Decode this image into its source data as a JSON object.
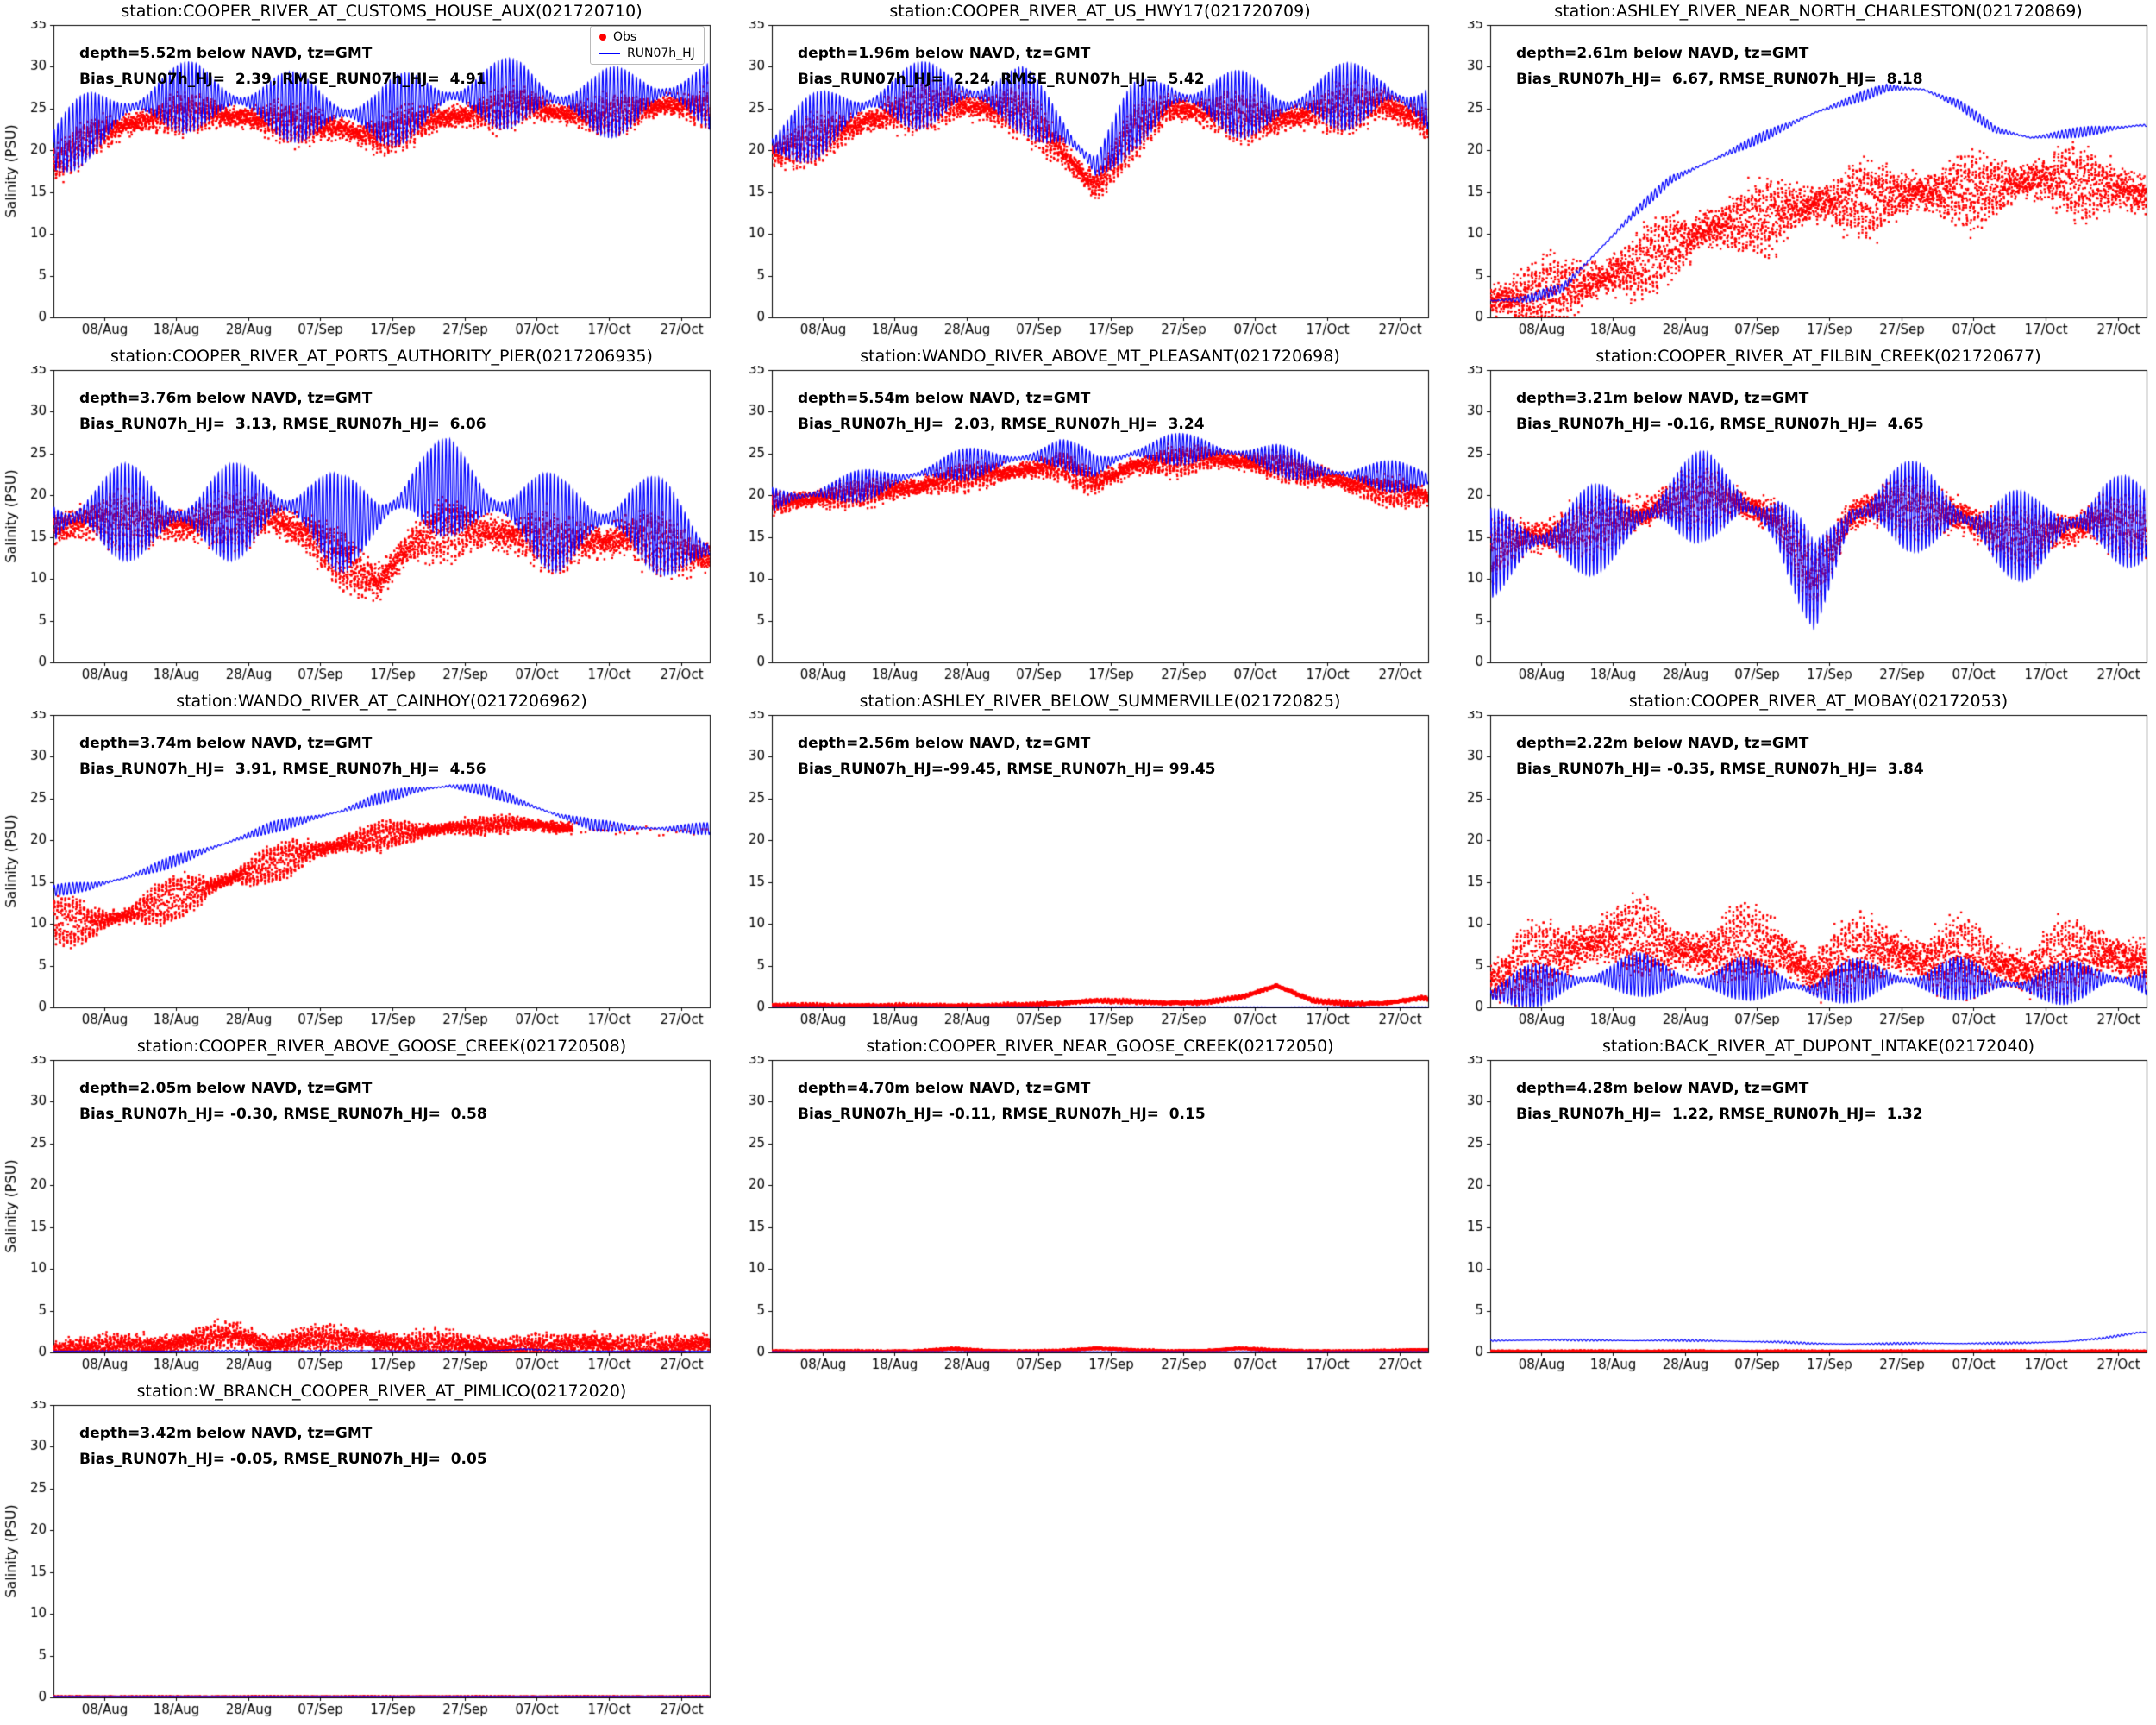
{
  "figure": {
    "background": "#ffffff",
    "obs_color": "#ff0000",
    "model_color": "#0000ff",
    "legend": {
      "obs_label": "Obs",
      "model_label": "RUN07h_HJ"
    },
    "ylabel": "Salinity (PSU)",
    "ylim": [
      0,
      35
    ],
    "xlim": [
      0,
      91
    ],
    "yticks": [
      0,
      5,
      10,
      15,
      20,
      25,
      30,
      35
    ],
    "xtick_days": [
      7,
      17,
      27,
      37,
      47,
      57,
      67,
      77,
      87
    ],
    "xtick_labels": [
      "08/Aug",
      "18/Aug",
      "28/Aug",
      "07/Sep",
      "17/Sep",
      "27/Sep",
      "07/Oct",
      "17/Oct",
      "27/Oct"
    ],
    "day_grid": [
      0,
      5,
      10,
      15,
      20,
      25,
      30,
      35,
      40,
      45,
      50,
      55,
      60,
      65,
      70,
      75,
      80,
      85,
      90
    ]
  },
  "chart_data": [
    {
      "type": "scatter+line",
      "title": "station:COOPER_RIVER_AT_CUSTOMS_HOUSE_AUX(021720710)",
      "annotation_depth": "depth=5.52m below NAVD, tz=GMT",
      "annotation_stats": "Bias_RUN07h_HJ=  2.39, RMSE_RUN07h_HJ=  4.91",
      "has_ylabel": true,
      "show_legend": true,
      "series": [
        {
          "name": "Obs",
          "style": "scatter",
          "color": "#ff0000",
          "trend": [
            18,
            21.5,
            23,
            24,
            24.5,
            24,
            23.5,
            23,
            22.5,
            21.5,
            23,
            24,
            24.5,
            25.5,
            24.5,
            24,
            24.5,
            25.5,
            25
          ],
          "amp": 1.8,
          "noise": 0.9
        },
        {
          "name": "RUN07h_HJ",
          "style": "line",
          "color": "#0000ff",
          "trend": [
            20,
            23,
            25,
            26,
            26.5,
            26,
            25.5,
            25,
            24.5,
            24,
            25.5,
            26.5,
            26.5,
            27,
            26,
            25.5,
            26,
            27,
            26.5
          ],
          "amp": 4.2
        }
      ]
    },
    {
      "type": "scatter+line",
      "title": "station:COOPER_RIVER_AT_US_HWY17(021720709)",
      "annotation_depth": "depth=1.96m below NAVD, tz=GMT",
      "annotation_stats": "Bias_RUN07h_HJ=  2.24, RMSE_RUN07h_HJ=  5.42",
      "has_ylabel": false,
      "show_legend": false,
      "series": [
        {
          "name": "Obs",
          "style": "scatter",
          "color": "#ff0000",
          "trend": [
            19.5,
            21,
            22.5,
            24,
            25,
            25.5,
            25,
            24.5,
            20,
            15.5,
            22,
            25,
            24.5,
            24,
            23.5,
            24.5,
            25,
            25.5,
            23.5
          ],
          "amp": 2.2,
          "noise": 1.0
        },
        {
          "name": "RUN07h_HJ",
          "style": "line",
          "color": "#0000ff",
          "trend": [
            20.5,
            22.5,
            24.5,
            26,
            26.5,
            27,
            26.5,
            26,
            22.5,
            18,
            24,
            26.5,
            26,
            25.5,
            25,
            26,
            26.5,
            27,
            25
          ],
          "amp": 4.0
        }
      ]
    },
    {
      "type": "scatter+line",
      "title": "station:ASHLEY_RIVER_NEAR_NORTH_CHARLESTON(021720869)",
      "annotation_depth": "depth=2.61m below NAVD, tz=GMT",
      "annotation_stats": "Bias_RUN07h_HJ=  6.67, RMSE_RUN07h_HJ=  8.18",
      "has_ylabel": false,
      "show_legend": false,
      "series": [
        {
          "name": "Obs",
          "style": "scatter",
          "color": "#ff0000",
          "trend": [
            2,
            2.3,
            3,
            4.5,
            6,
            8.5,
            10.5,
            11.5,
            12.5,
            13.5,
            14,
            14.5,
            15,
            15,
            15.5,
            16.5,
            16.5,
            15.5,
            15
          ],
          "amp": 3.2,
          "noise": 1.6
        },
        {
          "name": "RUN07h_HJ",
          "style": "line",
          "color": "#0000ff",
          "trend": [
            2,
            2.2,
            3.5,
            8,
            12.5,
            16.5,
            18.5,
            20.5,
            22.5,
            24.5,
            26,
            27.5,
            27.3,
            25.5,
            22.5,
            21.5,
            22,
            22.5,
            23
          ],
          "amp": 0.6
        }
      ]
    },
    {
      "type": "scatter+line",
      "title": "station:COOPER_RIVER_AT_PORTS_AUTHORITY_PIER(0217206935)",
      "annotation_depth": "depth=3.76m below NAVD, tz=GMT",
      "annotation_stats": "Bias_RUN07h_HJ=  3.13, RMSE_RUN07h_HJ=  6.06",
      "has_ylabel": true,
      "show_legend": false,
      "series": [
        {
          "name": "Obs",
          "style": "scatter",
          "color": "#ff0000",
          "trend": [
            16,
            17,
            17,
            16.5,
            16.5,
            17,
            17.5,
            15.5,
            12,
            9.5,
            14.5,
            16,
            15.5,
            15,
            14,
            14.5,
            15,
            14,
            12.5
          ],
          "amp": 2.6,
          "noise": 1.3
        },
        {
          "name": "RUN07h_HJ",
          "style": "line",
          "color": "#0000ff",
          "trend": [
            16.5,
            18,
            18,
            17.5,
            17.5,
            18,
            19,
            18.5,
            16.5,
            17.5,
            20.5,
            21,
            19,
            18,
            16.5,
            17,
            17.5,
            16,
            13.5
          ],
          "amp": 5.8
        }
      ]
    },
    {
      "type": "scatter+line",
      "title": "station:WANDO_RIVER_ABOVE_MT_PLEASANT(021720698)",
      "annotation_depth": "depth=5.54m below NAVD, tz=GMT",
      "annotation_stats": "Bias_RUN07h_HJ=  2.03, RMSE_RUN07h_HJ=  3.24",
      "has_ylabel": false,
      "show_legend": false,
      "series": [
        {
          "name": "Obs",
          "style": "scatter",
          "color": "#ff0000",
          "trend": [
            19,
            19.5,
            20,
            20.5,
            21,
            22,
            22.5,
            23,
            23.5,
            21.5,
            23.5,
            24,
            24.5,
            24,
            23.5,
            22.5,
            21.5,
            20.5,
            20
          ],
          "amp": 1.2,
          "noise": 0.7
        },
        {
          "name": "RUN07h_HJ",
          "style": "line",
          "color": "#0000ff",
          "trend": [
            19.5,
            20,
            20.8,
            21.5,
            22.5,
            23.5,
            24,
            24.5,
            25,
            23.5,
            25,
            25.5,
            25.5,
            25,
            24.3,
            23,
            22.5,
            22.3,
            22
          ],
          "amp": 1.9
        }
      ]
    },
    {
      "type": "scatter+line",
      "title": "station:COOPER_RIVER_AT_FILBIN_CREEK(021720677)",
      "annotation_depth": "depth=3.21m below NAVD, tz=GMT",
      "annotation_stats": "Bias_RUN07h_HJ= -0.16, RMSE_RUN07h_HJ=  4.65",
      "has_ylabel": false,
      "show_legend": false,
      "series": [
        {
          "name": "Obs",
          "style": "scatter",
          "color": "#ff0000",
          "trend": [
            13.5,
            15,
            15.5,
            16.5,
            17.5,
            19,
            20,
            19,
            17,
            10,
            17.5,
            19,
            18.5,
            17.5,
            15.5,
            15,
            16,
            17,
            16
          ],
          "amp": 2.6,
          "noise": 1.3
        },
        {
          "name": "RUN07h_HJ",
          "style": "line",
          "color": "#0000ff",
          "trend": [
            13,
            14.5,
            15,
            16,
            17,
            19,
            20,
            19,
            16.5,
            9,
            17.5,
            19,
            18.5,
            17.5,
            15.5,
            15,
            16.5,
            17.5,
            16.5
          ],
          "amp": 5.4
        }
      ]
    },
    {
      "type": "scatter+line",
      "title": "station:WANDO_RIVER_AT_CAINHOY(0217206962)",
      "annotation_depth": "depth=3.74m below NAVD, tz=GMT",
      "annotation_stats": "Bias_RUN07h_HJ=  3.91, RMSE_RUN07h_HJ=  4.56",
      "has_ylabel": true,
      "show_legend": false,
      "series": [
        {
          "name": "Obs",
          "style": "scatter",
          "color": "#ff0000",
          "trend": [
            10.5,
            10,
            11,
            12.5,
            14,
            15.5,
            17,
            18.5,
            19.5,
            20.5,
            21,
            21.5,
            21.8,
            22,
            21.5,
            21.3,
            21.2,
            21.1,
            21.2
          ],
          "amp": [
            2.5,
            2.5,
            2.5,
            2.4,
            2.3,
            2.2,
            2.0,
            1.8,
            1.6,
            1.4,
            1.2,
            1.0,
            0.8,
            0.5,
            0.3,
            0.25,
            0.25,
            0.25,
            0.25
          ],
          "noise": 0.5,
          "sparse_after": 72
        },
        {
          "name": "RUN07h_HJ",
          "style": "line",
          "color": "#0000ff",
          "trend": [
            14,
            14.5,
            15.5,
            17,
            18.5,
            20,
            21.5,
            22.5,
            23.5,
            25,
            26,
            26.5,
            26,
            24.5,
            23,
            21.8,
            21.5,
            21.4,
            21.4
          ],
          "amp": 0.7
        }
      ]
    },
    {
      "type": "scatter+line",
      "title": "station:ASHLEY_RIVER_BELOW_SUMMERVILLE(021720825)",
      "annotation_depth": "depth=2.56m below NAVD, tz=GMT",
      "annotation_stats": "Bias_RUN07h_HJ=-99.45, RMSE_RUN07h_HJ= 99.45",
      "has_ylabel": false,
      "show_legend": false,
      "series": [
        {
          "name": "Obs",
          "style": "scatter",
          "color": "#ff0000",
          "trend": [
            0.2,
            0.2,
            0.2,
            0.2,
            0.2,
            0.2,
            0.2,
            0.3,
            0.5,
            0.8,
            0.7,
            0.5,
            0.6,
            1.2,
            2.6,
            0.8,
            0.4,
            0.5,
            1.1
          ],
          "amp": 0.15,
          "noise": 0.15
        },
        {
          "name": "RUN07h_HJ",
          "style": "line",
          "color": "#0000ff",
          "trend": [
            0.05,
            0.05,
            0.05,
            0.05,
            0.05,
            0.05,
            0.05,
            0.05,
            0.05,
            0.05,
            0.05,
            0.05,
            0.05,
            0.05,
            0.05,
            0.05,
            0.05,
            0.05,
            0.05
          ],
          "amp": 0.02
        }
      ]
    },
    {
      "type": "scatter+line",
      "title": "station:COOPER_RIVER_AT_MOBAY(02172053)",
      "annotation_depth": "depth=2.22m below NAVD, tz=GMT",
      "annotation_stats": "Bias_RUN07h_HJ= -0.35, RMSE_RUN07h_HJ=  3.84",
      "has_ylabel": false,
      "show_legend": false,
      "series": [
        {
          "name": "Obs",
          "style": "scatter",
          "color": "#ff0000",
          "trend": [
            3,
            5,
            6.5,
            8,
            9,
            7,
            6.5,
            8,
            7,
            4,
            6.5,
            7,
            5.5,
            6.5,
            5,
            4.5,
            6,
            6.5,
            5.5
          ],
          "amp": 3.4,
          "noise": 1.6
        },
        {
          "name": "RUN07h_HJ",
          "style": "line",
          "color": "#0000ff",
          "trend": [
            1.5,
            2.5,
            3,
            3.5,
            4,
            3.5,
            3,
            3.5,
            3,
            2,
            3.2,
            3.5,
            3,
            3.5,
            3,
            2.5,
            3,
            3.5,
            3
          ],
          "amp": 2.6
        }
      ]
    },
    {
      "type": "scatter+line",
      "title": "station:COOPER_RIVER_ABOVE_GOOSE_CREEK(021720508)",
      "annotation_depth": "depth=2.05m below NAVD, tz=GMT",
      "annotation_stats": "Bias_RUN07h_HJ= -0.30, RMSE_RUN07h_HJ=  0.58",
      "has_ylabel": true,
      "show_legend": false,
      "series": [
        {
          "name": "Obs",
          "style": "scatter",
          "color": "#ff0000",
          "trend": [
            0.3,
            0.6,
            0.9,
            0.7,
            1.6,
            2.2,
            0.8,
            1.6,
            1.8,
            1.3,
            0.9,
            1.1,
            0.7,
            0.6,
            0.9,
            1.2,
            0.5,
            0.6,
            1.1
          ],
          "amp": 0.9,
          "noise": 0.8
        },
        {
          "name": "RUN07h_HJ",
          "style": "line",
          "color": "#0000ff",
          "trend": [
            0.15,
            0.15,
            0.15,
            0.15,
            0.15,
            0.2,
            0.15,
            0.15,
            0.2,
            0.2,
            0.15,
            0.15,
            0.15,
            0.4,
            0.2,
            0.15,
            0.15,
            0.15,
            0.15
          ],
          "amp": 0.08
        }
      ]
    },
    {
      "type": "scatter+line",
      "title": "station:COOPER_RIVER_NEAR_GOOSE_CREEK(02172050)",
      "annotation_depth": "depth=4.70m below NAVD, tz=GMT",
      "annotation_stats": "Bias_RUN07h_HJ= -0.11, RMSE_RUN07h_HJ=  0.15",
      "has_ylabel": false,
      "show_legend": false,
      "series": [
        {
          "name": "Obs",
          "style": "scatter",
          "color": "#ff0000",
          "trend": [
            0.15,
            0.15,
            0.15,
            0.15,
            0.15,
            0.45,
            0.2,
            0.15,
            0.2,
            0.5,
            0.3,
            0.15,
            0.2,
            0.5,
            0.25,
            0.15,
            0.15,
            0.2,
            0.3
          ],
          "amp": 0.07,
          "noise": 0.08
        },
        {
          "name": "RUN07h_HJ",
          "style": "line",
          "color": "#0000ff",
          "trend": [
            0.08,
            0.08,
            0.08,
            0.08,
            0.08,
            0.08,
            0.08,
            0.08,
            0.08,
            0.08,
            0.08,
            0.08,
            0.08,
            0.08,
            0.08,
            0.08,
            0.08,
            0.08,
            0.08
          ],
          "amp": 0.02
        }
      ]
    },
    {
      "type": "scatter+line",
      "title": "station:BACK_RIVER_AT_DUPONT_INTAKE(02172040)",
      "annotation_depth": "depth=4.28m below NAVD, tz=GMT",
      "annotation_stats": "Bias_RUN07h_HJ=  1.22, RMSE_RUN07h_HJ=  1.32",
      "has_ylabel": false,
      "show_legend": false,
      "series": [
        {
          "name": "Obs",
          "style": "scatter",
          "color": "#ff0000",
          "trend": [
            0.15,
            0.15,
            0.15,
            0.15,
            0.15,
            0.15,
            0.15,
            0.15,
            0.15,
            0.15,
            0.15,
            0.15,
            0.15,
            0.15,
            0.15,
            0.15,
            0.15,
            0.15,
            0.15
          ],
          "amp": 0.05,
          "noise": 0.05
        },
        {
          "name": "RUN07h_HJ",
          "style": "line",
          "color": "#0000ff",
          "trend": [
            1.4,
            1.45,
            1.5,
            1.45,
            1.4,
            1.45,
            1.4,
            1.3,
            1.25,
            1.05,
            1.0,
            1.05,
            1.1,
            1.05,
            1.1,
            1.15,
            1.3,
            1.7,
            2.4
          ],
          "amp": 0.12
        }
      ]
    },
    {
      "type": "scatter+line",
      "title": "station:W_BRANCH_COOPER_RIVER_AT_PIMLICO(02172020)",
      "annotation_depth": "depth=3.42m below NAVD, tz=GMT",
      "annotation_stats": "Bias_RUN07h_HJ= -0.05, RMSE_RUN07h_HJ=  0.05",
      "has_ylabel": true,
      "show_legend": false,
      "series": [
        {
          "name": "Obs",
          "style": "scatter",
          "color": "#ff0000",
          "trend": [
            0.08,
            0.08,
            0.08,
            0.08,
            0.08,
            0.08,
            0.08,
            0.08,
            0.08,
            0.08,
            0.08,
            0.08,
            0.08,
            0.08,
            0.08,
            0.08,
            0.08,
            0.08,
            0.08
          ],
          "amp": 0.03,
          "noise": 0.03
        },
        {
          "name": "RUN07h_HJ",
          "style": "line",
          "color": "#0000ff",
          "trend": [
            0.12,
            0.12,
            0.12,
            0.12,
            0.12,
            0.12,
            0.12,
            0.12,
            0.12,
            0.12,
            0.12,
            0.12,
            0.12,
            0.12,
            0.12,
            0.12,
            0.12,
            0.12,
            0.12
          ],
          "amp": 0.03
        }
      ]
    }
  ]
}
